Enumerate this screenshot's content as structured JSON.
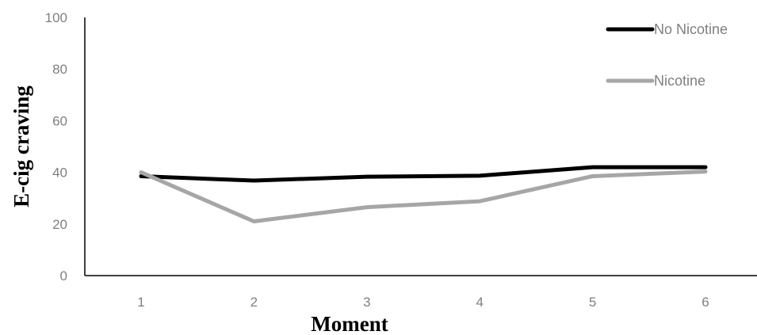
{
  "chart_data": {
    "type": "line",
    "title": "",
    "xlabel": "Moment",
    "ylabel": "E-cig craving",
    "categories": [
      "1",
      "2",
      "3",
      "4",
      "5",
      "6"
    ],
    "ylim": [
      0,
      100
    ],
    "yticks": [
      "0",
      "20",
      "40",
      "60",
      "80",
      "100"
    ],
    "grid": false,
    "legend_position": "top-right",
    "series": [
      {
        "name": "No Nicotine",
        "values": [
          38.5,
          36.8,
          38.3,
          38.7,
          42.0,
          42.0
        ],
        "color": "#000000"
      },
      {
        "name": "Nicotine",
        "values": [
          40.0,
          21.0,
          26.5,
          28.8,
          38.5,
          40.3
        ],
        "color": "#a6a6a6"
      }
    ]
  }
}
